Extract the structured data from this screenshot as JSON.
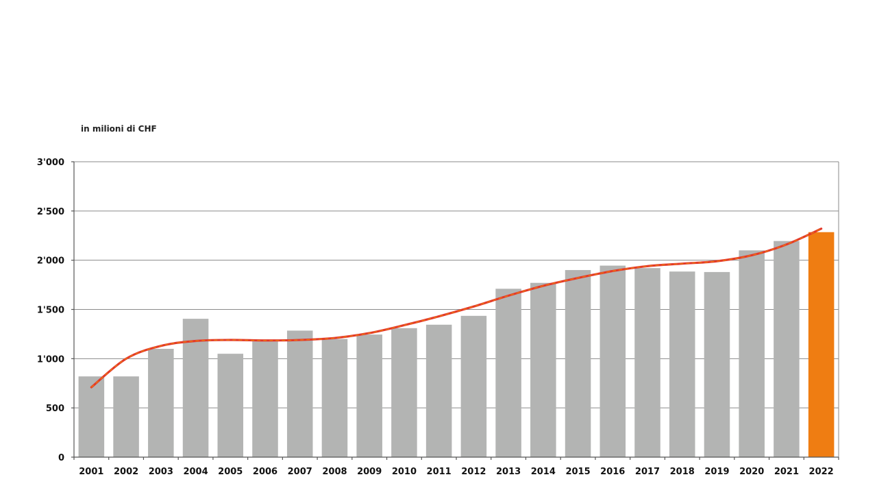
{
  "chart_data": {
    "type": "bar",
    "unit_label": "in milioni di CHF",
    "categories": [
      "2001",
      "2002",
      "2003",
      "2004",
      "2005",
      "2006",
      "2007",
      "2008",
      "2009",
      "2010",
      "2011",
      "2012",
      "2013",
      "2014",
      "2015",
      "2016",
      "2017",
      "2018",
      "2019",
      "2020",
      "2021",
      "2022"
    ],
    "series": [
      {
        "values": [
          820,
          820,
          1100,
          1405,
          1050,
          1175,
          1285,
          1200,
          1245,
          1310,
          1345,
          1435,
          1710,
          1770,
          1900,
          1945,
          1920,
          1885,
          1880,
          2100,
          2195,
          2285
        ]
      }
    ],
    "trend_line": {
      "values": [
        710,
        1000,
        1130,
        1180,
        1190,
        1185,
        1190,
        1210,
        1260,
        1340,
        1430,
        1530,
        1640,
        1740,
        1820,
        1890,
        1940,
        1965,
        1990,
        2050,
        2160,
        2320
      ]
    },
    "ylim": [
      0,
      3000
    ],
    "yticks": [
      {
        "value": 0,
        "label": "0"
      },
      {
        "value": 500,
        "label": "500"
      },
      {
        "value": 1000,
        "label": "1'000"
      },
      {
        "value": 1500,
        "label": "1'500"
      },
      {
        "value": 2000,
        "label": "2'000"
      },
      {
        "value": 2500,
        "label": "2'500"
      },
      {
        "value": 3000,
        "label": "3'000"
      }
    ],
    "grid": true,
    "legend": "none",
    "colors": {
      "bar": "#b3b4b3",
      "highlight_bar": "#ef7d12",
      "trend": "#e3392a",
      "trend_dash": "#f0a000",
      "grid": "#8a8a8a",
      "axis": "#555555"
    },
    "highlight_category": "2022"
  }
}
